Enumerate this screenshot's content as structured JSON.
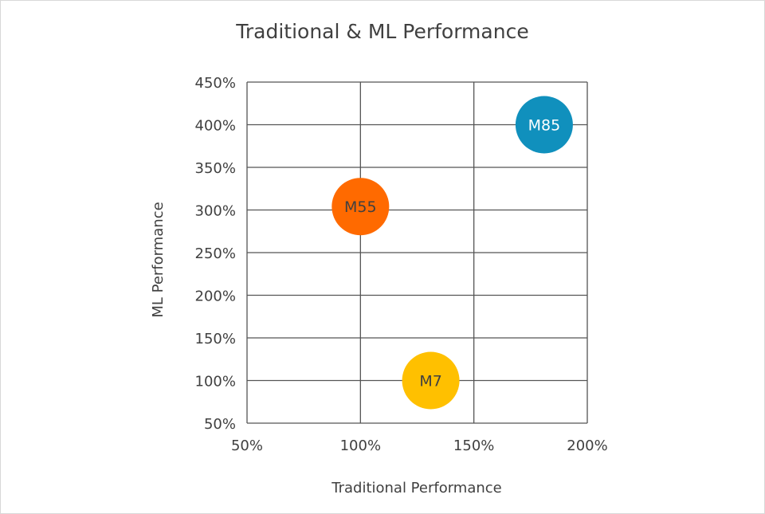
{
  "chart_data": {
    "type": "bubble",
    "title": "Traditional & ML Performance",
    "xlabel": "Traditional Performance",
    "ylabel": "ML Performance",
    "xlim": [
      50,
      200
    ],
    "ylim": [
      50,
      450
    ],
    "x_ticks": [
      50,
      100,
      150,
      200
    ],
    "x_tick_labels": [
      "50%",
      "100%",
      "150%",
      "200%"
    ],
    "y_ticks": [
      50,
      100,
      150,
      200,
      250,
      300,
      350,
      400,
      450
    ],
    "y_tick_labels": [
      "50%",
      "100%",
      "150%",
      "200%",
      "250%",
      "300%",
      "350%",
      "400%",
      "450%"
    ],
    "grid": true,
    "legend": "none",
    "points": [
      {
        "label": "M85",
        "x": 181,
        "y": 400,
        "color": "#1090bd",
        "label_color": "#ffffff"
      },
      {
        "label": "M55",
        "x": 100,
        "y": 304,
        "color": "#ff6a00",
        "label_color": "#404040"
      },
      {
        "label": "M7",
        "x": 131,
        "y": 100,
        "color": "#ffc000",
        "label_color": "#404040"
      }
    ]
  }
}
